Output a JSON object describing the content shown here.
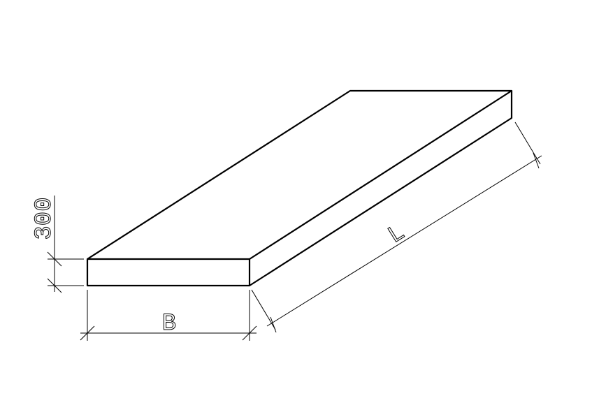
{
  "dimensions": {
    "height": "300",
    "width": "B",
    "length": "L"
  }
}
